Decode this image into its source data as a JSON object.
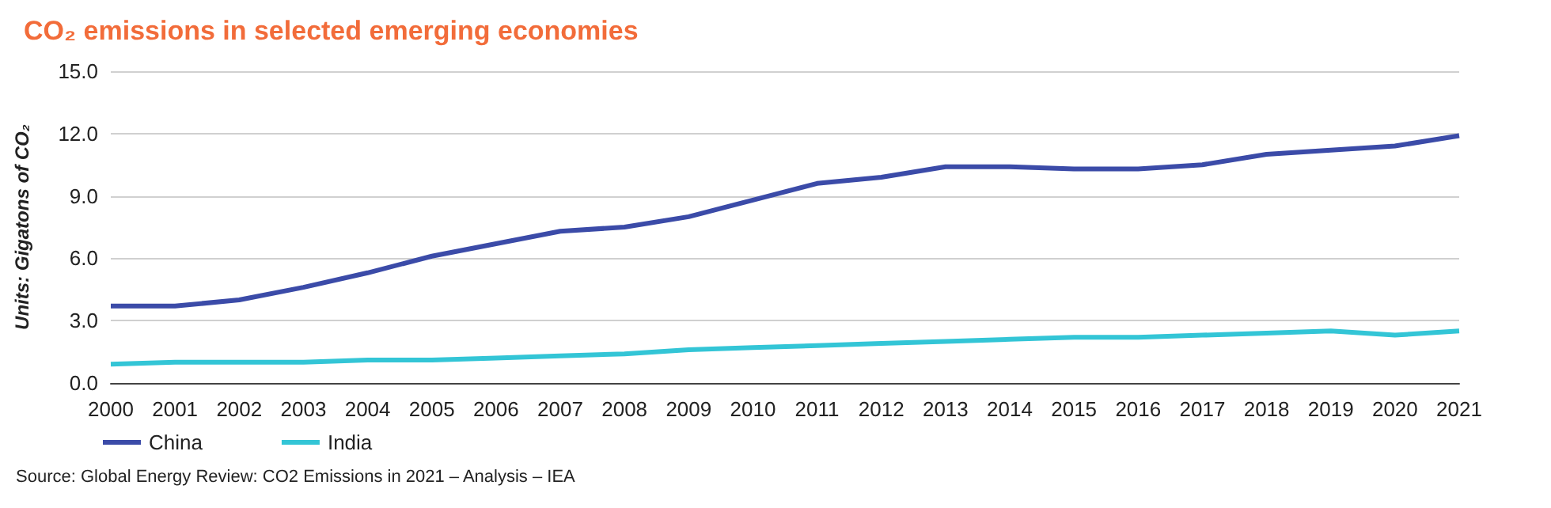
{
  "chart_data": {
    "type": "line",
    "title": "CO₂ emissions in selected emerging economies",
    "ylabel": "Units: Gigatons of CO₂",
    "categories": [
      "2000",
      "2001",
      "2002",
      "2003",
      "2004",
      "2005",
      "2006",
      "2007",
      "2008",
      "2009",
      "2010",
      "2011",
      "2012",
      "2013",
      "2014",
      "2015",
      "2016",
      "2017",
      "2018",
      "2019",
      "2020",
      "2021"
    ],
    "series": [
      {
        "name": "China",
        "color": "#3b4ba8",
        "values": [
          3.7,
          3.7,
          4.0,
          4.6,
          5.3,
          6.1,
          6.7,
          7.3,
          7.5,
          8.0,
          8.8,
          9.6,
          9.9,
          10.4,
          10.4,
          10.3,
          10.3,
          10.5,
          11.0,
          11.2,
          11.4,
          11.9
        ]
      },
      {
        "name": "India",
        "color": "#33c5d6",
        "values": [
          0.9,
          1.0,
          1.0,
          1.0,
          1.1,
          1.1,
          1.2,
          1.3,
          1.4,
          1.6,
          1.7,
          1.8,
          1.9,
          2.0,
          2.1,
          2.2,
          2.2,
          2.3,
          2.4,
          2.5,
          2.3,
          2.5
        ]
      }
    ],
    "ylim": [
      0,
      15
    ],
    "yticks": [
      {
        "value": 0,
        "label": "0.0"
      },
      {
        "value": 3,
        "label": "3.0"
      },
      {
        "value": 6,
        "label": "6.0"
      },
      {
        "value": 9,
        "label": "9.0"
      },
      {
        "value": 12,
        "label": "12.0"
      },
      {
        "value": 15,
        "label": "15.0"
      }
    ],
    "grid": "y",
    "legend": "bottom left",
    "marker": "none",
    "line_style": "solid",
    "annotations": [
      "Source: Global Energy Review: CO2 Emissions in 2021 – Analysis – IEA"
    ]
  }
}
